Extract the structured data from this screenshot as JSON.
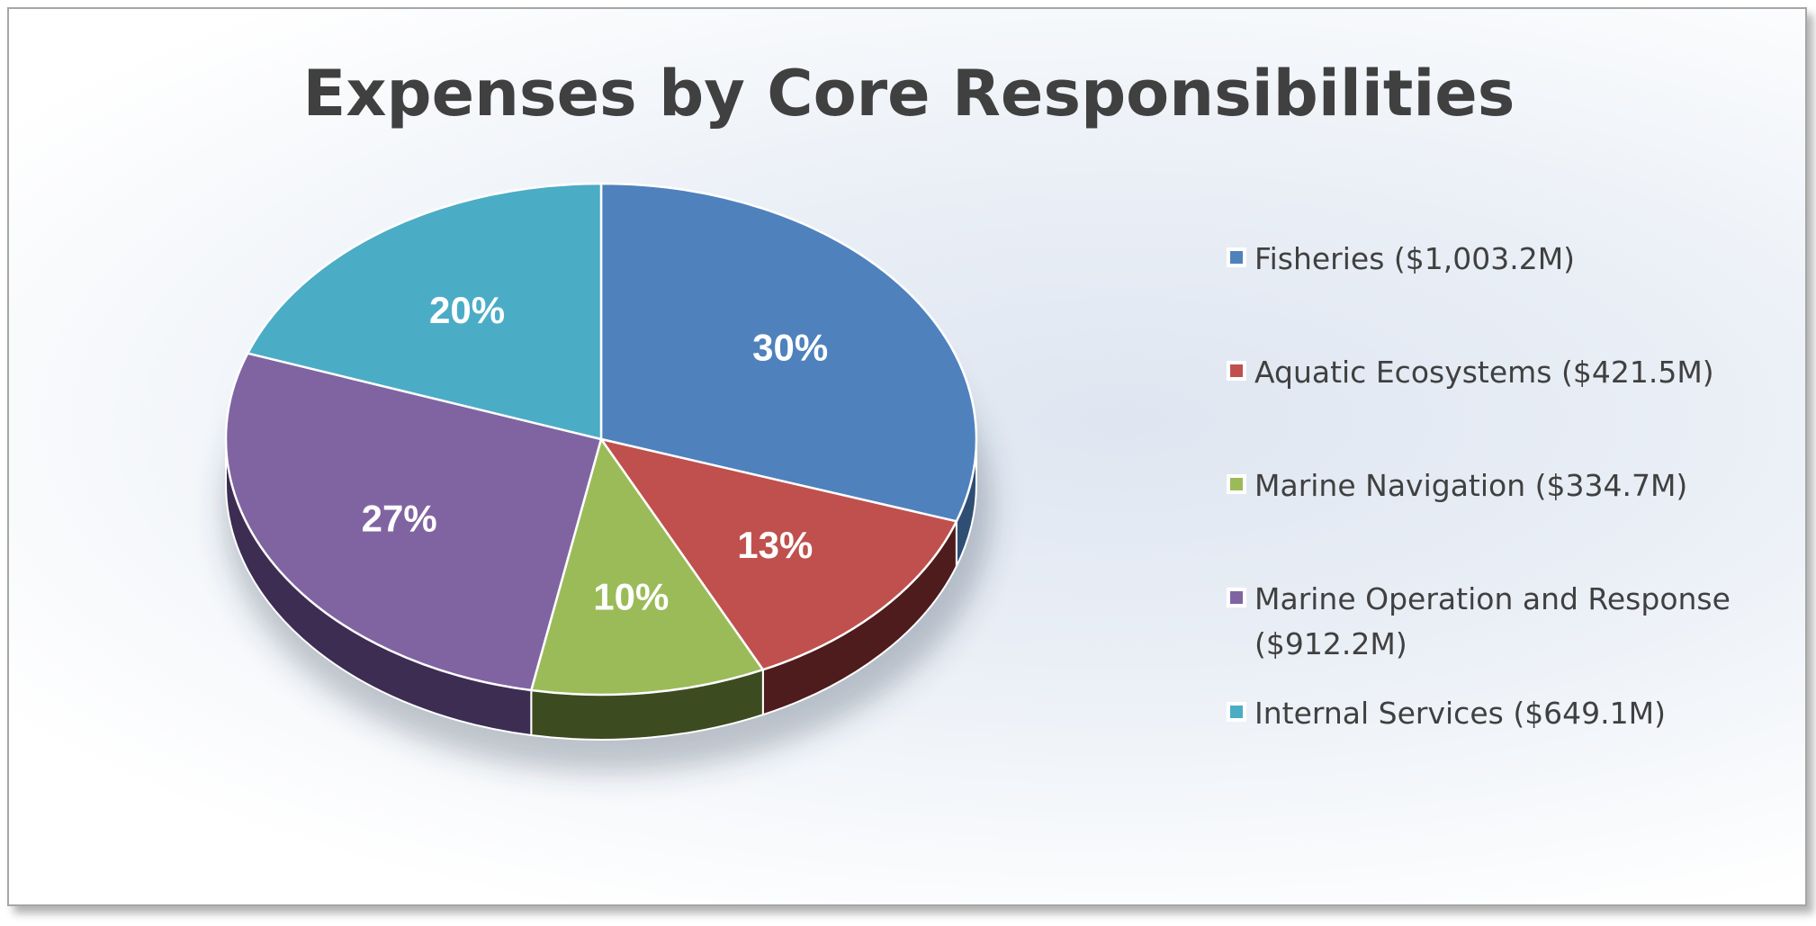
{
  "chart_data": {
    "type": "pie",
    "title": "Expenses by Core Responsibilities",
    "series": [
      {
        "name": "Expenses",
        "values": [
          1003.2,
          421.5,
          334.7,
          912.2,
          649.1
        ]
      }
    ],
    "categories": [
      "Fisheries ($1,003.2M)",
      "Aquatic Ecosystems ($421.5M)",
      "Marine Navigation ($334.7M)",
      "Marine Operation and Response ($912.2M)",
      "Internal Services ($649.1M)"
    ],
    "percent_labels": [
      "30%",
      "13%",
      "10%",
      "27%",
      "20%"
    ],
    "colors": [
      "#4f81bd",
      "#c0504d",
      "#9bbb59",
      "#8064a2",
      "#4bacc6"
    ],
    "side_colors": [
      "#2f4e74",
      "#4e1c1c",
      "#3d4b20",
      "#3d2d52",
      "#235e6e"
    ],
    "legend_position": "right"
  }
}
